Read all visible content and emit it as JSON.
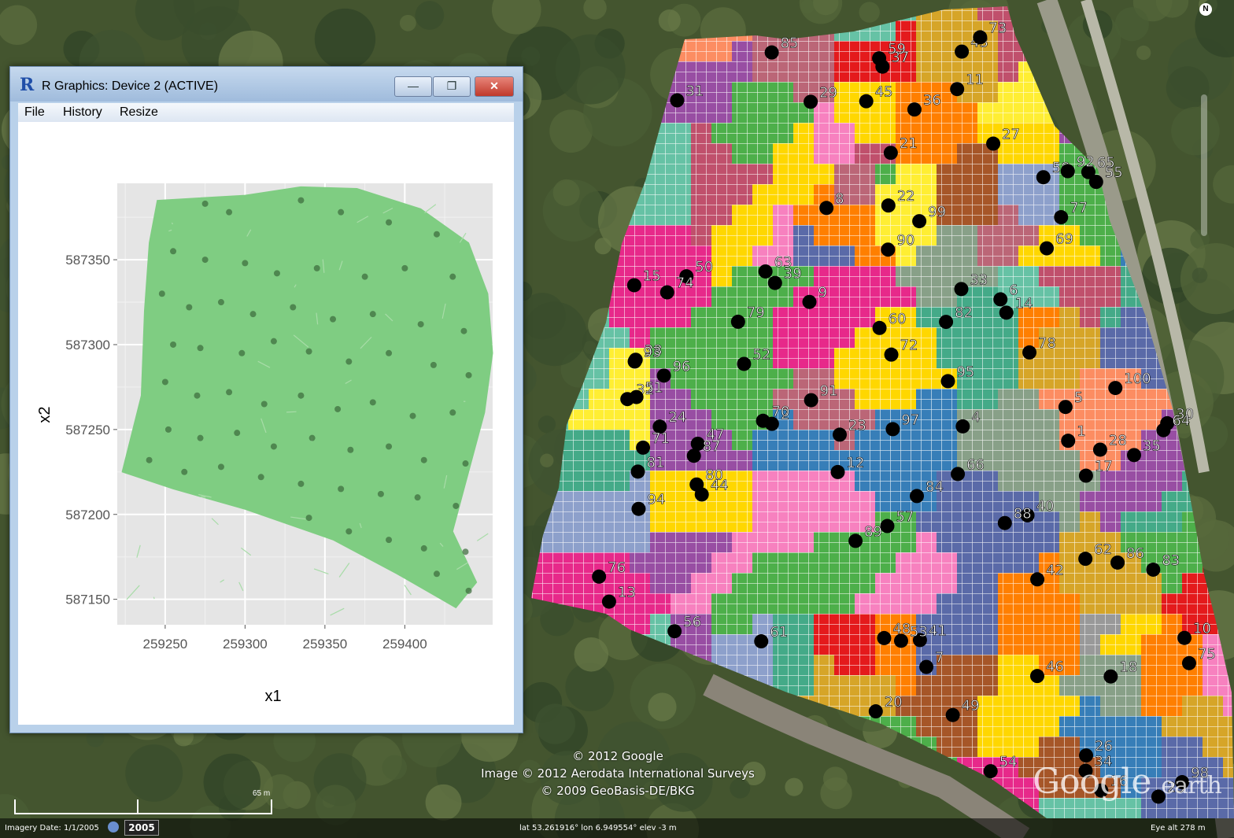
{
  "map": {
    "credits": [
      "© 2012 Google",
      "Image © 2012 Aerodata International Surveys",
      "© 2009 GeoBasis-DE/BKG"
    ],
    "brand_main": "Google",
    "brand_sub": "earth",
    "nav_north": "N",
    "scale_label": "65 m",
    "imagery_date": "Imagery Date: 1/1/2005",
    "year": "2005",
    "coords": "lat  53.261916°  lon   6.949554°  elev   -3 m",
    "eye_alt": "Eye alt    278 m",
    "cluster_labels": [
      "1",
      "2",
      "4",
      "5",
      "6",
      "7",
      "8",
      "9",
      "10",
      "11",
      "12",
      "13",
      "14",
      "15",
      "16",
      "17",
      "18",
      "20",
      "21",
      "22",
      "23",
      "24",
      "25",
      "26",
      "27",
      "28",
      "29",
      "30",
      "31",
      "32",
      "33",
      "34",
      "35",
      "36",
      "37",
      "38",
      "39",
      "40",
      "41",
      "42",
      "43",
      "44",
      "45",
      "46",
      "47",
      "48",
      "49",
      "50",
      "51",
      "52",
      "53",
      "54",
      "55",
      "56",
      "57",
      "58",
      "59",
      "60",
      "61",
      "62",
      "63",
      "64",
      "65",
      "66",
      "69",
      "70",
      "71",
      "72",
      "73",
      "74",
      "75",
      "76",
      "77",
      "78",
      "79",
      "80",
      "81",
      "82",
      "83",
      "84",
      "85",
      "86",
      "87",
      "88",
      "89",
      "90",
      "91",
      "92",
      "93",
      "94",
      "95",
      "96",
      "97",
      "98",
      "99",
      "100"
    ],
    "colors": [
      "#ffd700",
      "#4daf4a",
      "#377eb8",
      "#e41a1c",
      "#984ea3",
      "#ff7f00",
      "#e7298a",
      "#a65628",
      "#f781bf",
      "#999999",
      "#66c2a5",
      "#fc8d62",
      "#8da0cb",
      "#d6a528",
      "#c0506c",
      "#88a088",
      "#5a6aa8",
      "#bb6677",
      "#44aa88",
      "#ffee33"
    ]
  },
  "rwindow": {
    "title": "R Graphics: Device 2 (ACTIVE)",
    "icon": "R",
    "menu": [
      "File",
      "History",
      "Resize"
    ],
    "buttons": {
      "minimize": "—",
      "maximize": "❐",
      "close": "✕"
    }
  },
  "chart_data": {
    "type": "map",
    "xlabel": "x1",
    "ylabel": "x2",
    "xticks": [
      259250,
      259300,
      259350,
      259400
    ],
    "yticks": [
      587150,
      587200,
      587250,
      587300,
      587350
    ],
    "xlim": [
      259220,
      259455
    ],
    "ylim": [
      587135,
      587395
    ],
    "fill_color": "#7fcd82",
    "point_color": "#3a6a3a",
    "grid": true,
    "polygon": [
      [
        259245,
        587385
      ],
      [
        259300,
        587388
      ],
      [
        259335,
        587393
      ],
      [
        259370,
        587392
      ],
      [
        259410,
        587380
      ],
      [
        259440,
        587360
      ],
      [
        259452,
        587330
      ],
      [
        259455,
        587295
      ],
      [
        259450,
        587260
      ],
      [
        259440,
        587225
      ],
      [
        259430,
        587190
      ],
      [
        259445,
        587160
      ],
      [
        259432,
        587145
      ],
      [
        259395,
        587165
      ],
      [
        259355,
        587185
      ],
      [
        259300,
        587203
      ],
      [
        259255,
        587215
      ],
      [
        259223,
        587225
      ],
      [
        259235,
        587270
      ],
      [
        259237,
        587320
      ],
      [
        259240,
        587360
      ]
    ],
    "points": [
      [
        259275,
        587383
      ],
      [
        259290,
        587378
      ],
      [
        259335,
        587385
      ],
      [
        259360,
        587378
      ],
      [
        259390,
        587372
      ],
      [
        259420,
        587365
      ],
      [
        259255,
        587355
      ],
      [
        259275,
        587350
      ],
      [
        259300,
        587348
      ],
      [
        259320,
        587342
      ],
      [
        259345,
        587345
      ],
      [
        259375,
        587340
      ],
      [
        259400,
        587345
      ],
      [
        259430,
        587340
      ],
      [
        259248,
        587330
      ],
      [
        259265,
        587322
      ],
      [
        259285,
        587325
      ],
      [
        259305,
        587318
      ],
      [
        259330,
        587322
      ],
      [
        259355,
        587315
      ],
      [
        259380,
        587318
      ],
      [
        259410,
        587312
      ],
      [
        259437,
        587308
      ],
      [
        259255,
        587300
      ],
      [
        259272,
        587298
      ],
      [
        259298,
        587295
      ],
      [
        259318,
        587302
      ],
      [
        259340,
        587296
      ],
      [
        259365,
        587290
      ],
      [
        259390,
        587295
      ],
      [
        259418,
        587288
      ],
      [
        259440,
        587282
      ],
      [
        259250,
        587278
      ],
      [
        259270,
        587270
      ],
      [
        259290,
        587272
      ],
      [
        259312,
        587265
      ],
      [
        259335,
        587270
      ],
      [
        259358,
        587262
      ],
      [
        259380,
        587266
      ],
      [
        259405,
        587258
      ],
      [
        259430,
        587260
      ],
      [
        259252,
        587250
      ],
      [
        259272,
        587245
      ],
      [
        259295,
        587248
      ],
      [
        259318,
        587240
      ],
      [
        259342,
        587245
      ],
      [
        259366,
        587238
      ],
      [
        259390,
        587240
      ],
      [
        259412,
        587232
      ],
      [
        259438,
        587230
      ],
      [
        259240,
        587232
      ],
      [
        259262,
        587225
      ],
      [
        259285,
        587228
      ],
      [
        259310,
        587222
      ],
      [
        259335,
        587218
      ],
      [
        259360,
        587215
      ],
      [
        259385,
        587212
      ],
      [
        259408,
        587210
      ],
      [
        259432,
        587205
      ],
      [
        259340,
        587198
      ],
      [
        259365,
        587190
      ],
      [
        259390,
        587185
      ],
      [
        259412,
        587180
      ],
      [
        259438,
        587178
      ],
      [
        259420,
        587165
      ],
      [
        259440,
        587155
      ]
    ]
  }
}
